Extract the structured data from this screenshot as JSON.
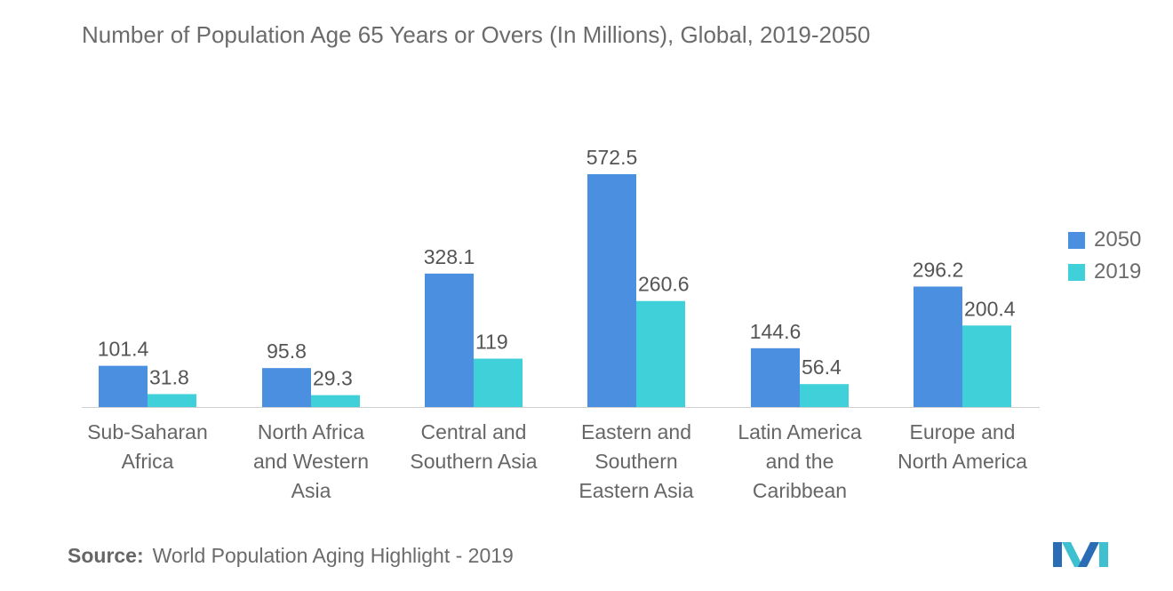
{
  "chart_data": {
    "type": "bar",
    "title": "Number of Population Age 65 Years or Overs (In Millions), Global, 2019-2050",
    "categories": [
      [
        "Sub-Saharan",
        "Africa"
      ],
      [
        "North Africa",
        "and Western",
        "Asia"
      ],
      [
        "Central and",
        "Southern Asia"
      ],
      [
        "Eastern and",
        "Southern",
        "Eastern Asia"
      ],
      [
        "Latin America",
        "and the",
        "Caribbean"
      ],
      [
        "Europe and",
        "North America"
      ]
    ],
    "series": [
      {
        "name": "2050",
        "color": "#4a8fe0",
        "values": [
          101.4,
          95.8,
          328.1,
          572.5,
          144.6,
          296.2
        ],
        "labels": [
          "101.4",
          "95.8",
          "328.1",
          "572.5",
          "144.6",
          "296.2"
        ]
      },
      {
        "name": "2019",
        "color": "#3fd0d9",
        "values": [
          31.8,
          29.3,
          119,
          260.6,
          56.4,
          200.4
        ],
        "labels": [
          "31.8",
          "29.3",
          "119",
          "260.6",
          "56.4",
          "200.4"
        ]
      }
    ],
    "xlabel": "",
    "ylabel": "",
    "ylim": [
      0,
      572.5
    ],
    "grid": false,
    "legend": "right"
  },
  "source": {
    "label": "Source:",
    "text": "World Population Aging Highlight - 2019"
  },
  "logo": {
    "icon": "mordor-intelligence-logo-icon"
  }
}
